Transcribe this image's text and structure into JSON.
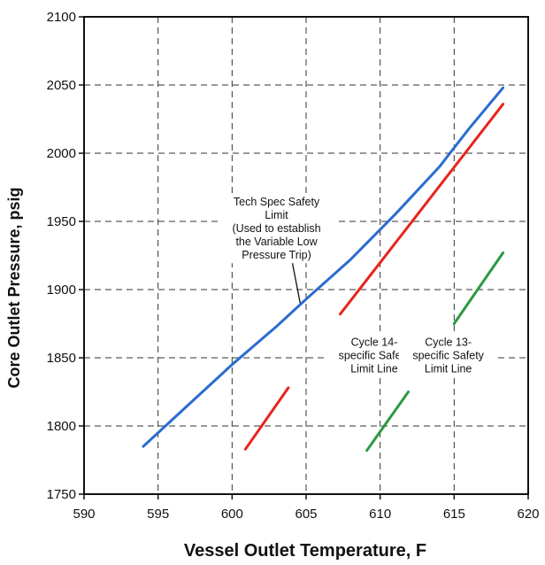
{
  "chart_data": {
    "type": "line",
    "xlabel": "Vessel Outlet Temperature, F",
    "ylabel": "Core Outlet Pressure, psig",
    "xlim": [
      590,
      620
    ],
    "ylim": [
      1750,
      2100
    ],
    "xticks": [
      590,
      595,
      600,
      605,
      610,
      615,
      620
    ],
    "yticks": [
      1750,
      1800,
      1850,
      1900,
      1950,
      2000,
      2050,
      2100
    ],
    "grid": "dashed",
    "series": [
      {
        "color": "#2a6ccf",
        "points": [
          [
            594,
            1785
          ],
          [
            597,
            1815
          ],
          [
            600,
            1845
          ],
          [
            603,
            1873
          ],
          [
            605,
            1893
          ],
          [
            608,
            1922
          ],
          [
            611,
            1955
          ],
          [
            614,
            1990
          ],
          [
            616,
            2018
          ],
          [
            618.3,
            2048
          ]
        ]
      },
      {
        "color": "#e8231b",
        "segments": [
          [
            [
              600.9,
              1783
            ],
            [
              603.8,
              1828
            ]
          ],
          [
            [
              607.3,
              1882
            ],
            [
              618.3,
              2036
            ]
          ]
        ]
      },
      {
        "color": "#2a9a43",
        "segments": [
          [
            [
              609.1,
              1782
            ],
            [
              611.9,
              1825
            ]
          ],
          [
            [
              615.0,
              1875
            ],
            [
              618.3,
              1927
            ]
          ]
        ]
      }
    ],
    "annotations": [
      {
        "lines": [
          "Tech Spec Safety",
          "Limit",
          "(Used to establish",
          "the Variable Low",
          "Pressure Trip)"
        ],
        "anchor": [
          603,
          1945
        ],
        "arrow_to": [
          604.6,
          1890
        ]
      },
      {
        "lines": [
          "Cycle 14-",
          "specific Safety",
          "Limit Line"
        ],
        "anchor": [
          609.6,
          1852
        ]
      },
      {
        "lines": [
          "Cycle 13-",
          "specific Safety",
          "Limit Line"
        ],
        "anchor": [
          614.6,
          1852
        ]
      }
    ]
  }
}
